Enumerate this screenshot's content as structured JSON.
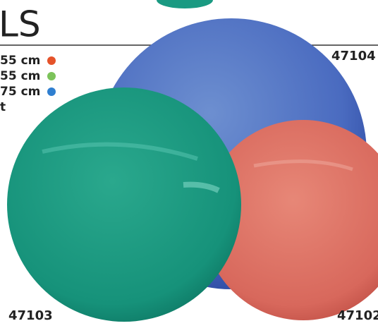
{
  "header": {
    "title": "LS"
  },
  "sizes": [
    "55 cm",
    "55 cm",
    "75 cm"
  ],
  "note": "t",
  "products": {
    "blue": "47104",
    "teal": "47103",
    "red": "47102"
  }
}
